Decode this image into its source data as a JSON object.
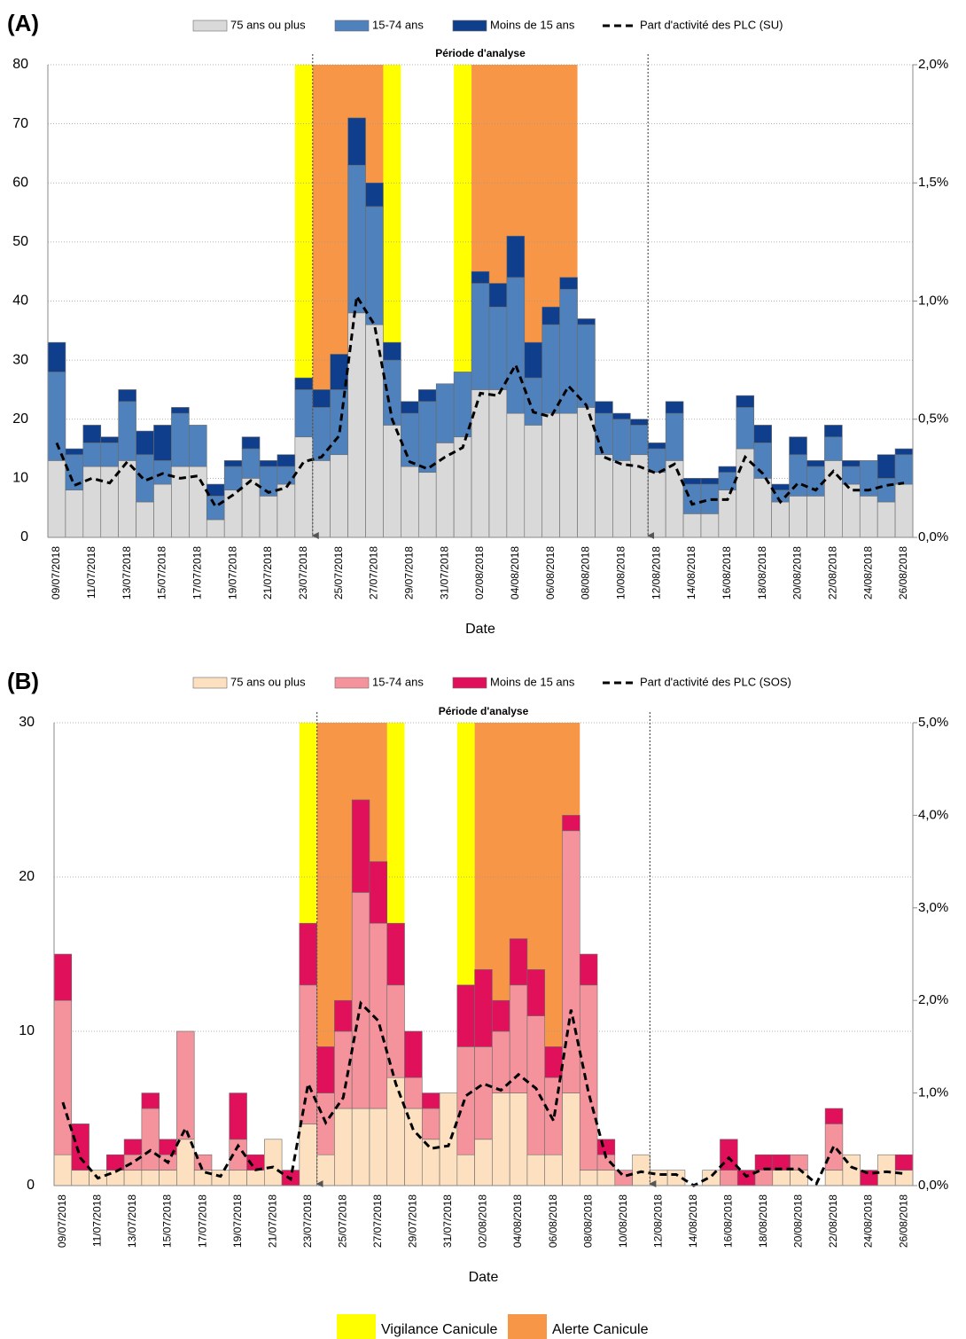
{
  "chart_data": [
    {
      "type": "bar",
      "stacked": true,
      "panel": "(A)",
      "xlabel": "Date",
      "annotation": "Période d'analyse",
      "analysis_period": [
        15,
        34
      ],
      "ytick_color": "#4f81bd",
      "grid": true,
      "categories": [
        "09/07/2018",
        null,
        "11/07/2018",
        null,
        "13/07/2018",
        null,
        "15/07/2018",
        null,
        "17/07/2018",
        null,
        "19/07/2018",
        null,
        "21/07/2018",
        null,
        "23/07/2018",
        null,
        "25/07/2018",
        null,
        "27/07/2018",
        null,
        "29/07/2018",
        null,
        "31/07/2018",
        null,
        "02/08/2018",
        null,
        "04/08/2018",
        null,
        "06/08/2018",
        null,
        "08/08/2018",
        null,
        "10/08/2018",
        null,
        "12/08/2018",
        null,
        "14/08/2018",
        null,
        "16/08/2018",
        null,
        "18/08/2018",
        null,
        "20/08/2018",
        null,
        "22/08/2018",
        null,
        "24/08/2018",
        null,
        "26/08/2018"
      ],
      "ylim": [
        0,
        80
      ],
      "yticks": [
        0,
        10,
        20,
        30,
        40,
        50,
        60,
        70,
        80
      ],
      "y2lim": [
        0,
        2
      ],
      "y2ticks": [
        {
          "value": 0,
          "label": "0,0%"
        },
        {
          "value": 0.5,
          "label": "0,5%"
        },
        {
          "value": 1,
          "label": "1,0%"
        },
        {
          "value": 1.5,
          "label": "1,5%"
        },
        {
          "value": 2,
          "label": "2,0%"
        }
      ],
      "series": [
        {
          "name": "75 ans ou plus",
          "color": "#d9d9d9",
          "values": [
            13,
            8,
            12,
            12,
            13,
            6,
            9,
            12,
            12,
            3,
            8,
            10,
            7,
            9,
            17,
            13,
            14,
            38,
            36,
            19,
            12,
            11,
            16,
            17,
            25,
            25,
            21,
            19,
            21,
            21,
            22,
            14,
            13,
            14,
            11,
            13,
            4,
            4,
            8,
            15,
            10,
            6,
            7,
            7,
            13,
            9,
            7,
            6,
            9
          ]
        },
        {
          "name": "15-74 ans",
          "color": "#4f81bd",
          "values": [
            15,
            6,
            4,
            4,
            10,
            8,
            4,
            9,
            7,
            4,
            4,
            5,
            5,
            3,
            8,
            9,
            11,
            25,
            20,
            11,
            9,
            12,
            10,
            11,
            18,
            14,
            23,
            8,
            15,
            21,
            14,
            7,
            7,
            5,
            4,
            8,
            5,
            5,
            3,
            7,
            6,
            2,
            7,
            5,
            4,
            3,
            6,
            4,
            5
          ]
        },
        {
          "name": "Moins de 15 ans",
          "color": "#0f3f8c",
          "values": [
            5,
            1,
            3,
            1,
            2,
            4,
            6,
            1,
            0,
            2,
            1,
            2,
            1,
            2,
            2,
            3,
            6,
            8,
            4,
            3,
            2,
            2,
            0,
            0,
            2,
            4,
            7,
            6,
            3,
            2,
            1,
            2,
            1,
            1,
            1,
            2,
            1,
            1,
            1,
            2,
            3,
            1,
            3,
            1,
            2,
            1,
            0,
            4,
            1
          ]
        },
        {
          "name": "Part d'activité des PLC (SU)",
          "color": "#000000",
          "type": "line",
          "axis": "y2",
          "dashed": true,
          "values": [
            0.4,
            0.22,
            0.25,
            0.23,
            0.32,
            0.24,
            0.27,
            0.25,
            0.26,
            0.13,
            0.18,
            0.24,
            0.19,
            0.21,
            0.32,
            0.34,
            0.43,
            1.02,
            0.9,
            0.5,
            0.32,
            0.29,
            0.34,
            0.38,
            0.61,
            0.6,
            0.73,
            0.53,
            0.51,
            0.64,
            0.56,
            0.34,
            0.31,
            0.3,
            0.27,
            0.31,
            0.14,
            0.16,
            0.16,
            0.34,
            0.27,
            0.15,
            0.23,
            0.2,
            0.28,
            0.2,
            0.2,
            0.22,
            0.23
          ]
        }
      ]
    },
    {
      "type": "bar",
      "stacked": true,
      "panel": "(B)",
      "xlabel": "Date",
      "annotation": "Période d'analyse",
      "analysis_period": [
        15,
        34
      ],
      "ytick_color": "#e0105a",
      "grid": true,
      "categories": [
        "09/07/2018",
        null,
        "11/07/2018",
        null,
        "13/07/2018",
        null,
        "15/07/2018",
        null,
        "17/07/2018",
        null,
        "19/07/2018",
        null,
        "21/07/2018",
        null,
        "23/07/2018",
        null,
        "25/07/2018",
        null,
        "27/07/2018",
        null,
        "29/07/2018",
        null,
        "31/07/2018",
        null,
        "02/08/2018",
        null,
        "04/08/2018",
        null,
        "06/08/2018",
        null,
        "08/08/2018",
        null,
        "10/08/2018",
        null,
        "12/08/2018",
        null,
        "14/08/2018",
        null,
        "16/08/2018",
        null,
        "18/08/2018",
        null,
        "20/08/2018",
        null,
        "22/08/2018",
        null,
        "24/08/2018",
        null,
        "26/08/2018"
      ],
      "ylim": [
        0,
        30
      ],
      "yticks": [
        0,
        10,
        20,
        30
      ],
      "y2lim": [
        0,
        5
      ],
      "y2ticks": [
        {
          "value": 0,
          "label": "0,0%"
        },
        {
          "value": 1,
          "label": "1,0%"
        },
        {
          "value": 2,
          "label": "2,0%"
        },
        {
          "value": 3,
          "label": "3,0%"
        },
        {
          "value": 4,
          "label": "4,0%"
        },
        {
          "value": 5,
          "label": "5,0%"
        }
      ],
      "series": [
        {
          "name": "75 ans ou plus",
          "color": "#fde0c0",
          "values": [
            2,
            1,
            1,
            1,
            1,
            1,
            1,
            3,
            1,
            1,
            1,
            1,
            3,
            0,
            4,
            2,
            5,
            5,
            5,
            7,
            5,
            3,
            6,
            2,
            3,
            6,
            6,
            2,
            2,
            6,
            1,
            1,
            0,
            2,
            1,
            1,
            0,
            1,
            0,
            0,
            0,
            1,
            1,
            0,
            1,
            2,
            0,
            2,
            1
          ]
        },
        {
          "name": "15-74 ans",
          "color": "#f4939b",
          "values": [
            10,
            0,
            0,
            0,
            1,
            4,
            1,
            7,
            1,
            0,
            2,
            0,
            0,
            0,
            9,
            4,
            5,
            14,
            12,
            6,
            2,
            2,
            0,
            7,
            6,
            4,
            7,
            9,
            5,
            17,
            12,
            1,
            1,
            0,
            0,
            0,
            0,
            0,
            1,
            0,
            1,
            0,
            1,
            0,
            3,
            0,
            0,
            0,
            0
          ]
        },
        {
          "name": "Moins de 15 ans",
          "color": "#e0105a",
          "values": [
            3,
            3,
            0,
            1,
            1,
            1,
            1,
            0,
            0,
            0,
            3,
            1,
            0,
            1,
            4,
            3,
            2,
            6,
            4,
            4,
            3,
            1,
            0,
            4,
            5,
            2,
            3,
            3,
            2,
            1,
            2,
            1,
            0,
            0,
            0,
            0,
            0,
            0,
            2,
            1,
            1,
            1,
            0,
            0,
            1,
            0,
            1,
            0,
            1
          ]
        },
        {
          "name": "Part d'activité des PLC (SOS)",
          "color": "#000000",
          "type": "line",
          "axis": "y2",
          "dashed": true,
          "values": [
            0.9,
            0.3,
            0.08,
            0.15,
            0.25,
            0.38,
            0.25,
            0.62,
            0.15,
            0.1,
            0.43,
            0.17,
            0.2,
            0.07,
            1.1,
            0.68,
            0.95,
            1.97,
            1.78,
            1.1,
            0.6,
            0.4,
            0.43,
            0.97,
            1.1,
            1.03,
            1.2,
            1.05,
            0.7,
            1.9,
            1.0,
            0.3,
            0.1,
            0.15,
            0.12,
            0.12,
            0,
            0.1,
            0.3,
            0.1,
            0.18,
            0.18,
            0.18,
            0.02,
            0.43,
            0.2,
            0.13,
            0.15,
            0.13
          ]
        }
      ]
    }
  ],
  "heat_alerts": {
    "bands": [
      {
        "name": "Vigilance Canicule",
        "color": "#ffff00",
        "spans": [
          [
            14,
            14
          ],
          [
            19,
            19
          ],
          [
            23,
            23
          ]
        ]
      },
      {
        "name": "Alerte Canicule",
        "color": "#f79646",
        "spans": [
          [
            15,
            18
          ],
          [
            24,
            29
          ]
        ]
      }
    ]
  }
}
